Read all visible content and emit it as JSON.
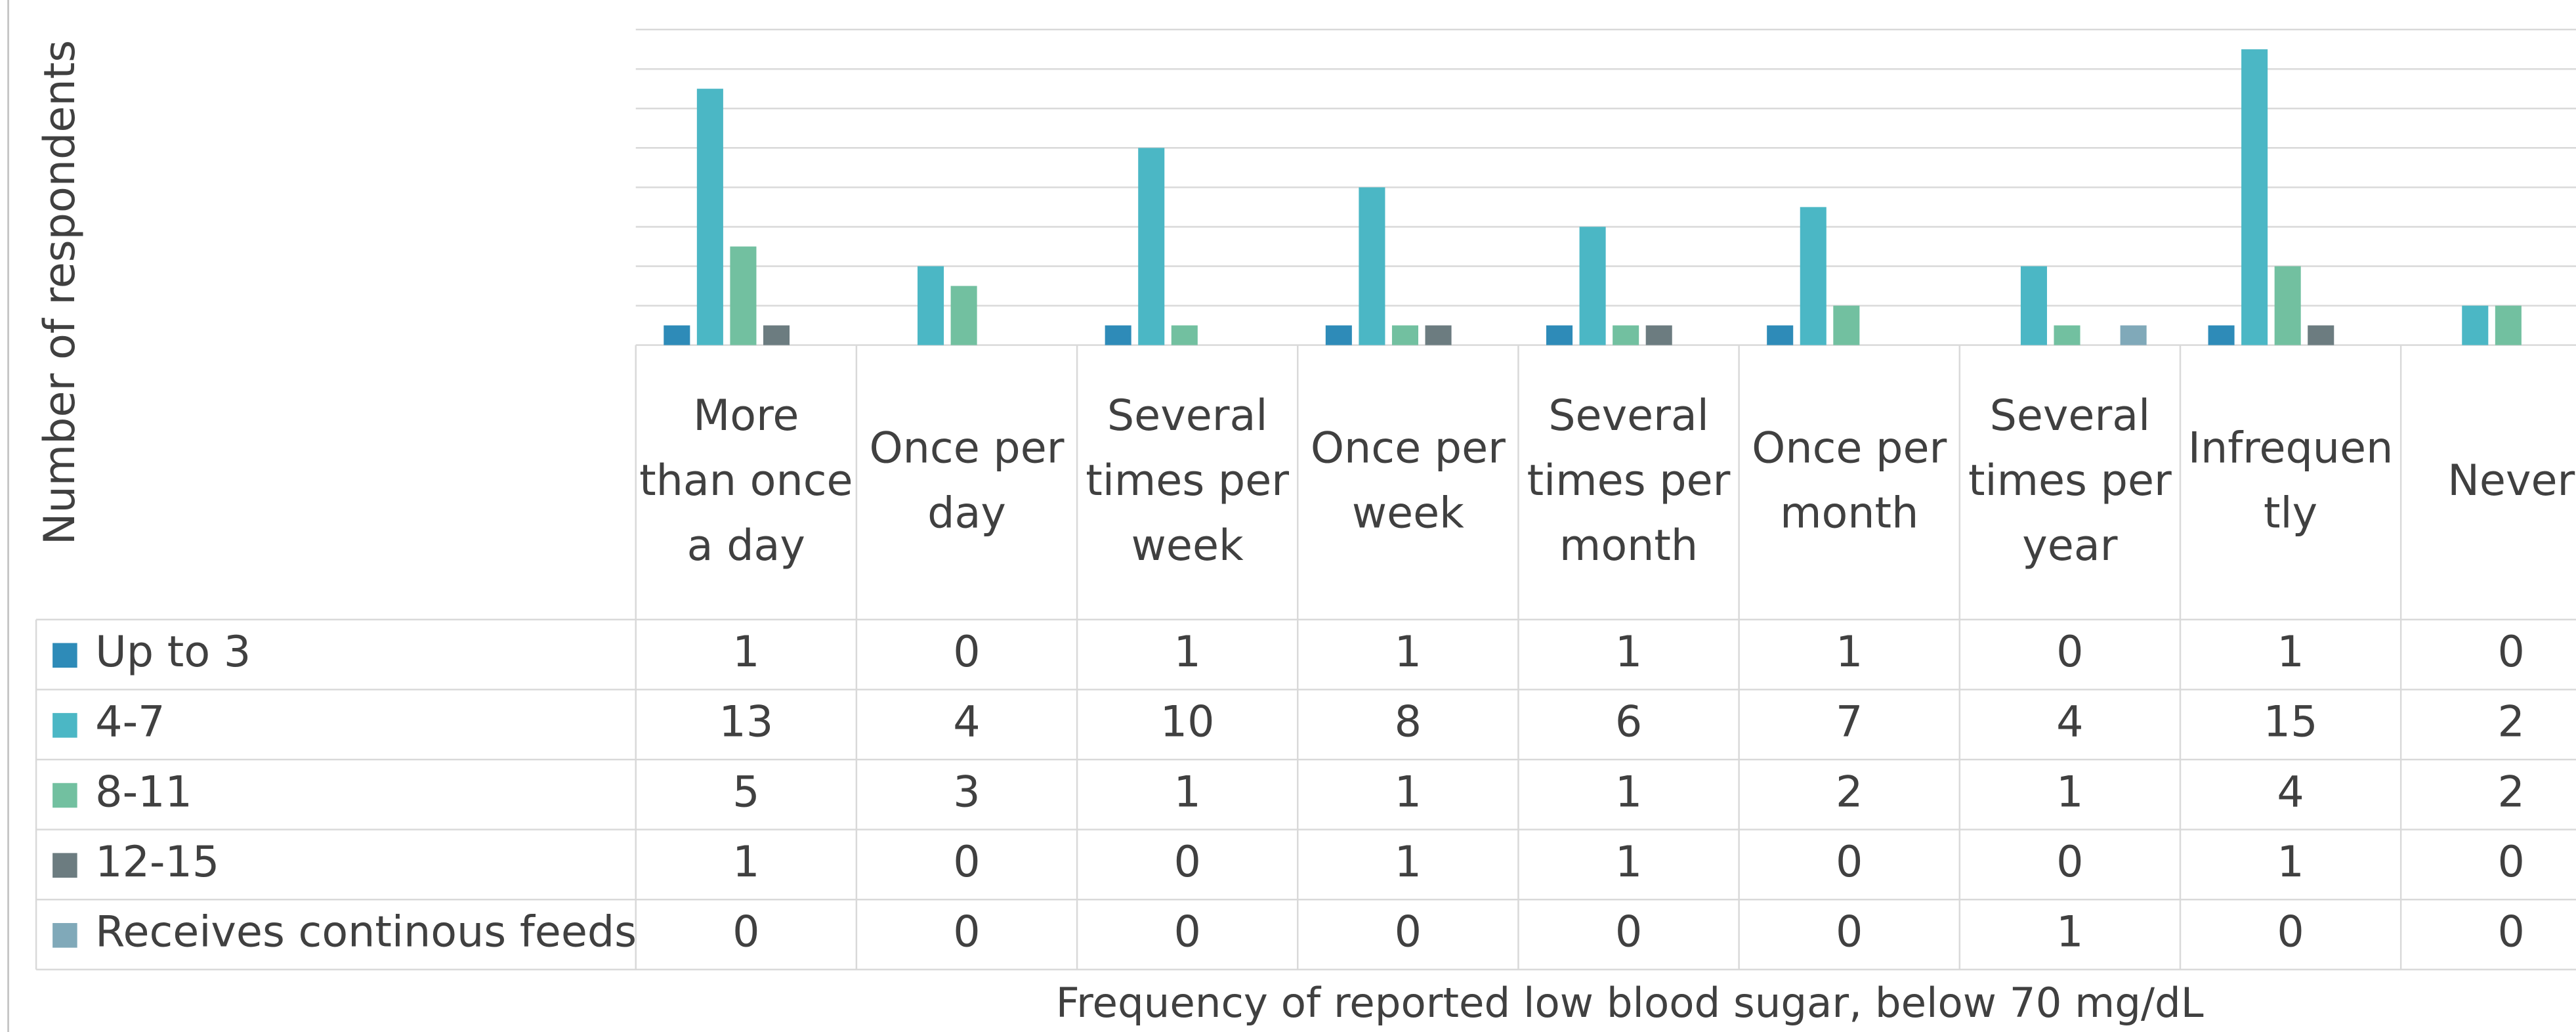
{
  "chart_data": {
    "type": "bar",
    "y_label": "Number of respondents",
    "x_label": "Frequency of reported low blood sugar, below 70 mg/dL",
    "categories": [
      "More than once a day",
      "Once per day",
      "Several times per week",
      "Once per week",
      "Several times per month",
      "Once per month",
      "Several times per year",
      "Infrequently",
      "Never"
    ],
    "series": [
      {
        "name": "Up to 3",
        "color": "#2e8bb8",
        "values": [
          1,
          0,
          1,
          1,
          1,
          1,
          0,
          1,
          0
        ]
      },
      {
        "name": "4-7",
        "color": "#4bb7c5",
        "values": [
          13,
          4,
          10,
          8,
          6,
          7,
          4,
          15,
          2
        ]
      },
      {
        "name": "8-11",
        "color": "#72c0a0",
        "values": [
          5,
          3,
          1,
          1,
          1,
          2,
          1,
          4,
          2
        ]
      },
      {
        "name": "12-15",
        "color": "#6c7c80",
        "values": [
          1,
          0,
          0,
          1,
          1,
          0,
          0,
          1,
          0
        ]
      },
      {
        "name": "Receives continous feeds",
        "color": "#80a9b9",
        "values": [
          0,
          0,
          0,
          0,
          0,
          0,
          1,
          0,
          0
        ]
      }
    ],
    "ylim": [
      0,
      16
    ],
    "yticks": [
      0,
      2,
      4,
      6,
      8,
      10,
      12,
      14,
      16
    ],
    "grid": true,
    "data_table": true
  }
}
